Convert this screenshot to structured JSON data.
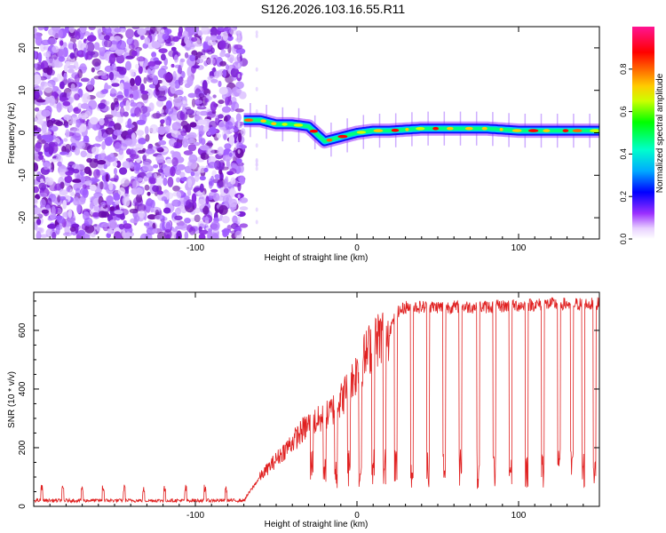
{
  "title": "S126.2026.103.16.55.R11",
  "colors": {
    "snr_line": "#e02020",
    "axis": "#000000",
    "colormap": [
      "#ffffff",
      "#e8d0ff",
      "#9b30ff",
      "#0000ff",
      "#00aaff",
      "#00ffcc",
      "#00ff00",
      "#ccff00",
      "#ffcc00",
      "#ff6600",
      "#ff0000",
      "#ff1493"
    ]
  },
  "chart_data": [
    {
      "type": "heatmap",
      "name": "spectrogram",
      "xlabel": "Height of straight line (km)",
      "ylabel": "Frequency (Hz)",
      "xlim": [
        -200,
        150
      ],
      "ylim": [
        -25,
        25
      ],
      "xticks": [
        -100,
        0,
        100
      ],
      "yticks": [
        -20,
        -10,
        0,
        10,
        20
      ],
      "noise_region_x": [
        -200,
        -70
      ],
      "gap_marks_x": [
        -73,
        -62
      ],
      "ridge_x": [
        -70,
        -60,
        -50,
        -40,
        -30,
        -20,
        -10,
        0,
        10,
        20,
        40,
        60,
        80,
        100,
        120,
        150
      ],
      "ridge_freq": [
        3,
        3,
        2,
        2,
        1.5,
        -2,
        -1,
        0,
        0.5,
        0.5,
        1,
        1,
        1,
        0.5,
        0.5,
        0.5
      ],
      "colorbar": {
        "label": "Normalized spectral amplitude",
        "range": [
          0,
          1
        ],
        "ticks": [
          "0.0",
          "0.2",
          "0.4",
          "0.6",
          "0.8"
        ]
      }
    },
    {
      "type": "line",
      "name": "snr",
      "xlabel": "Height of straight line (km)",
      "ylabel": "SNR (10 * v/v)",
      "xlim": [
        -200,
        150
      ],
      "ylim": [
        0,
        730
      ],
      "xticks": [
        -100,
        0,
        100
      ],
      "yticks": [
        0,
        200,
        400,
        600
      ],
      "series": [
        {
          "name": "SNR",
          "x": [
            -200,
            -180,
            -160,
            -140,
            -120,
            -100,
            -80,
            -70,
            -60,
            -50,
            -40,
            -30,
            -20,
            -10,
            0,
            10,
            20,
            25,
            30,
            40,
            60,
            80,
            100,
            120,
            150
          ],
          "values": [
            20,
            20,
            20,
            20,
            20,
            20,
            20,
            20,
            100,
            160,
            220,
            280,
            300,
            360,
            460,
            560,
            600,
            660,
            680,
            680,
            680,
            680,
            685,
            690,
            690
          ]
        }
      ],
      "dropout_x": [
        -28,
        -20,
        -13,
        -5,
        2,
        10,
        17,
        24,
        34,
        44,
        54,
        64,
        75,
        85,
        95,
        105,
        115,
        125,
        133,
        140,
        147
      ],
      "spike_x": [
        -195,
        -182,
        -170,
        -157,
        -144,
        -132,
        -119,
        -106,
        -94,
        -81
      ]
    }
  ]
}
